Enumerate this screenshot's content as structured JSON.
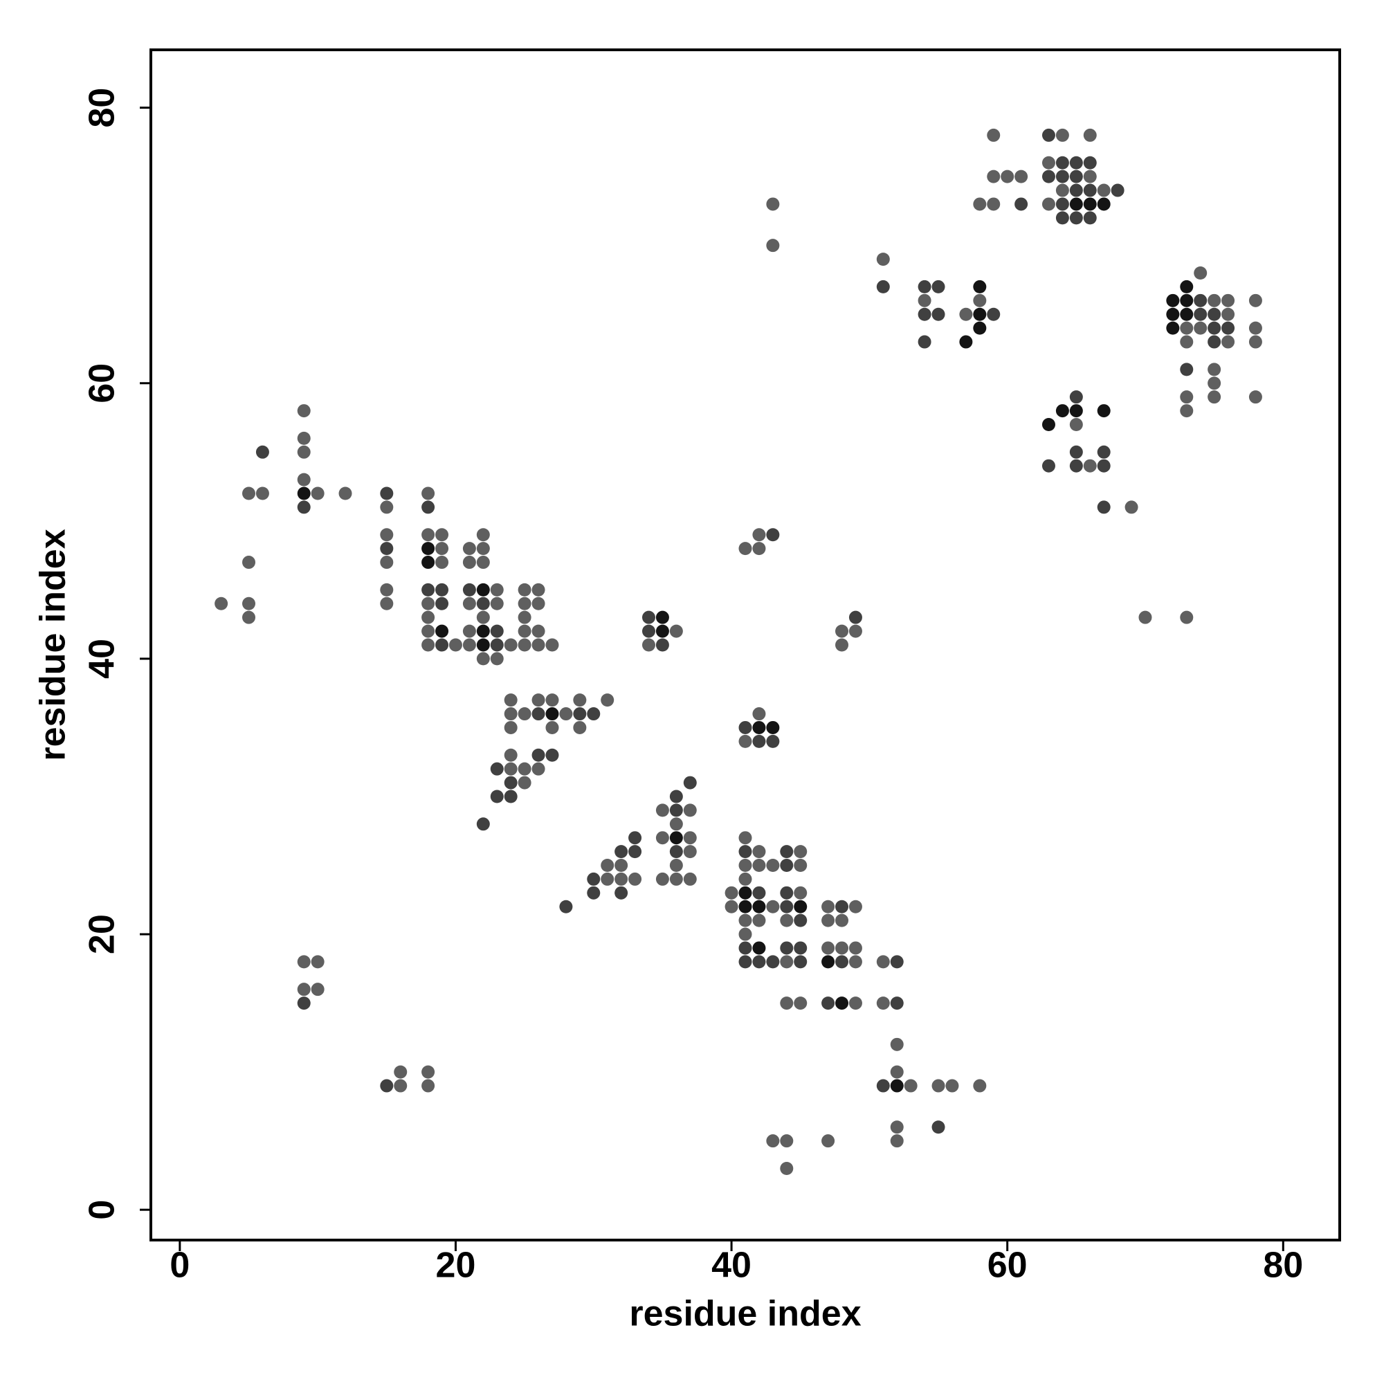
{
  "chart_data": {
    "type": "scatter",
    "x_label": "residue index",
    "y_label": "residue index",
    "xlim": [
      -2.1,
      84.1
    ],
    "ylim": [
      -2.2,
      84.2
    ],
    "xticks": [
      0,
      20,
      40,
      60,
      80
    ],
    "yticks": [
      0,
      20,
      40,
      60,
      80
    ],
    "grid": false,
    "series": [
      {
        "color": "#5f5f5f",
        "x": [
          59,
          64,
          66,
          59,
          60,
          61,
          58,
          59,
          63,
          66,
          64,
          67,
          63,
          43,
          43,
          51,
          54,
          58,
          57,
          74,
          75,
          76,
          76,
          73,
          74,
          73,
          76,
          75,
          75,
          73,
          75,
          73,
          78,
          78,
          78,
          78,
          65,
          66,
          69,
          70,
          73,
          9,
          9,
          9,
          9,
          5,
          6,
          10,
          12,
          5,
          3,
          5,
          5,
          15,
          15,
          15,
          15,
          15,
          18,
          18,
          19,
          19,
          19,
          18,
          18,
          18,
          18,
          20,
          21,
          22,
          22,
          21,
          22,
          23,
          21,
          23,
          22,
          21,
          21,
          22,
          23,
          24,
          25,
          26,
          27,
          25,
          26,
          25,
          25,
          26,
          25,
          26,
          36,
          34,
          24,
          26,
          27,
          29,
          31,
          24,
          25,
          28,
          24,
          27,
          29,
          24,
          24,
          25,
          26,
          25,
          42,
          41,
          41,
          42,
          42,
          48,
          49,
          48,
          35,
          37,
          36,
          35,
          37,
          37,
          36,
          35,
          36,
          37,
          31,
          32,
          31,
          32,
          33,
          41,
          42,
          45,
          41,
          42,
          43,
          45,
          41,
          40,
          45,
          40,
          43,
          41,
          42,
          44,
          41,
          44,
          47,
          49,
          47,
          48,
          47,
          48,
          49,
          49,
          51,
          44,
          45,
          49,
          51,
          52,
          52,
          53,
          55,
          56,
          58,
          52,
          52,
          43,
          44,
          47,
          44,
          9,
          10,
          9,
          10,
          16,
          16,
          18,
          18
        ],
        "y": [
          78,
          78,
          78,
          75,
          75,
          75,
          73,
          73,
          76,
          75,
          74,
          74,
          73,
          73,
          70,
          69,
          66,
          66,
          65,
          68,
          66,
          66,
          65,
          64,
          64,
          63,
          63,
          61,
          60,
          59,
          59,
          58,
          66,
          64,
          63,
          59,
          57,
          54,
          51,
          43,
          43,
          58,
          56,
          55,
          53,
          52,
          52,
          52,
          52,
          47,
          44,
          44,
          43,
          51,
          49,
          47,
          45,
          44,
          52,
          49,
          49,
          48,
          47,
          44,
          43,
          42,
          41,
          41,
          48,
          48,
          49,
          47,
          47,
          45,
          44,
          44,
          43,
          42,
          41,
          40,
          40,
          41,
          41,
          41,
          41,
          42,
          42,
          43,
          44,
          44,
          45,
          45,
          42,
          41,
          37,
          37,
          37,
          37,
          37,
          36,
          36,
          36,
          35,
          35,
          35,
          33,
          32,
          32,
          32,
          31,
          36,
          34,
          48,
          48,
          49,
          42,
          42,
          41,
          29,
          29,
          28,
          27,
          27,
          26,
          25,
          24,
          24,
          24,
          25,
          25,
          24,
          24,
          24,
          27,
          26,
          26,
          25,
          25,
          25,
          25,
          24,
          23,
          23,
          22,
          22,
          21,
          21,
          21,
          20,
          18,
          22,
          22,
          21,
          21,
          19,
          19,
          19,
          18,
          18,
          15,
          15,
          15,
          15,
          12,
          10,
          9,
          9,
          9,
          9,
          6,
          5,
          5,
          5,
          5,
          3,
          18,
          18,
          16,
          16,
          9,
          10,
          10,
          9
        ]
      },
      {
        "color": "#404040",
        "x": [
          63,
          61,
          64,
          65,
          66,
          63,
          64,
          65,
          65,
          66,
          68,
          64,
          64,
          65,
          66,
          51,
          54,
          55,
          54,
          55,
          54,
          59,
          74,
          74,
          75,
          75,
          76,
          75,
          73,
          65,
          65,
          67,
          63,
          65,
          67,
          67,
          6,
          9,
          15,
          15,
          18,
          18,
          19,
          19,
          19,
          21,
          22,
          23,
          23,
          34,
          34,
          35,
          26,
          29,
          30,
          26,
          27,
          23,
          24,
          23,
          24,
          22,
          41,
          42,
          43,
          43,
          49,
          37,
          36,
          36,
          36,
          33,
          32,
          33,
          30,
          30,
          32,
          28,
          41,
          44,
          44,
          42,
          44,
          44,
          45,
          41,
          44,
          45,
          41,
          42,
          43,
          45,
          48,
          48,
          52,
          47,
          52,
          51,
          55,
          9,
          15
        ],
        "y": [
          78,
          73,
          76,
          76,
          76,
          75,
          75,
          75,
          74,
          74,
          74,
          73,
          72,
          72,
          72,
          67,
          67,
          67,
          65,
          65,
          63,
          65,
          66,
          65,
          65,
          64,
          64,
          63,
          61,
          59,
          55,
          55,
          54,
          54,
          54,
          51,
          55,
          51,
          52,
          48,
          51,
          45,
          45,
          44,
          41,
          45,
          44,
          42,
          41,
          43,
          42,
          41,
          36,
          36,
          36,
          33,
          33,
          32,
          31,
          30,
          30,
          28,
          35,
          34,
          34,
          49,
          43,
          31,
          30,
          29,
          26,
          27,
          26,
          26,
          24,
          23,
          23,
          22,
          26,
          26,
          25,
          23,
          23,
          22,
          21,
          19,
          19,
          19,
          18,
          18,
          18,
          18,
          22,
          18,
          18,
          15,
          15,
          9,
          6,
          15,
          9
        ]
      },
      {
        "color": "#141414",
        "x": [
          65,
          66,
          67,
          58,
          58,
          58,
          57,
          73,
          72,
          73,
          72,
          73,
          72,
          64,
          65,
          67,
          63,
          9,
          18,
          18,
          19,
          22,
          22,
          22,
          35,
          35,
          27,
          42,
          43,
          36,
          41,
          41,
          42,
          45,
          42,
          47,
          48,
          52
        ],
        "y": [
          73,
          73,
          73,
          67,
          65,
          64,
          63,
          67,
          66,
          66,
          65,
          65,
          64,
          58,
          58,
          58,
          57,
          52,
          48,
          47,
          42,
          45,
          42,
          41,
          43,
          42,
          36,
          35,
          35,
          27,
          23,
          22,
          22,
          22,
          19,
          18,
          15,
          9
        ]
      }
    ]
  }
}
